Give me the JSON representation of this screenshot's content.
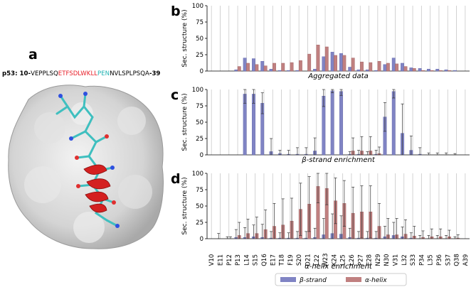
{
  "left": {
    "label": "a",
    "sequence": [
      {
        "text": "p53: 10-",
        "color": "#000000",
        "bold": true
      },
      {
        "text": "VEPPLSQ",
        "color": "#000000"
      },
      {
        "text": "ETFSDLWKLL",
        "color": "#e8202a"
      },
      {
        "text": "PEN",
        "color": "#21b3b3"
      },
      {
        "text": "NVLSPLPSQA",
        "color": "#000000"
      },
      {
        "text": "-39",
        "color": "#000000",
        "bold": true
      }
    ]
  },
  "colors": {
    "strand": "#8084c4",
    "helix": "#c08080",
    "strand_edge": "#5d62a8",
    "helix_edge": "#9b5c5c",
    "grid": "#c8c8c8"
  },
  "legend": {
    "strand": "β-strand",
    "helix": "α-helix"
  },
  "chart_data": [
    {
      "panel": "b",
      "type": "bar",
      "subtitle": "Aggregated data",
      "ylabel": "Sec. structure (%)",
      "ylim": [
        0,
        100
      ],
      "yticks": [
        0,
        25,
        50,
        75,
        100
      ],
      "categories": [
        "V10",
        "E11",
        "P12",
        "P13",
        "L14",
        "S15",
        "Q16",
        "E17",
        "T18",
        "F19",
        "S20",
        "D21",
        "L22",
        "W23",
        "K24",
        "L25",
        "L26",
        "P27",
        "E28",
        "N29",
        "N30",
        "V31",
        "L32",
        "S33",
        "P34",
        "L35",
        "P36",
        "S37",
        "Q38",
        "A39"
      ],
      "series": [
        {
          "name": "β-strand",
          "values": [
            0,
            0,
            0,
            2,
            20,
            19,
            15,
            3,
            1,
            1,
            1,
            0,
            3,
            22,
            29,
            27,
            6,
            2,
            2,
            1,
            10,
            20,
            12,
            5,
            4,
            3,
            3,
            2,
            1,
            0
          ]
        },
        {
          "name": "α-helix",
          "values": [
            0,
            0,
            0,
            7,
            12,
            10,
            8,
            12,
            12,
            13,
            16,
            26,
            40,
            37,
            24,
            24,
            20,
            14,
            13,
            15,
            12,
            11,
            7,
            4,
            1,
            1,
            1,
            1,
            0,
            0
          ]
        }
      ]
    },
    {
      "panel": "c",
      "type": "bar",
      "subtitle": "β-strand enrichment",
      "ylabel": "Sec. structure (%)",
      "ylim": [
        0,
        100
      ],
      "yticks": [
        0,
        25,
        50,
        75,
        100
      ],
      "categories": [
        "V10",
        "E11",
        "P12",
        "P13",
        "L14",
        "S15",
        "Q16",
        "E17",
        "T18",
        "F19",
        "S20",
        "D21",
        "L22",
        "W23",
        "K24",
        "L25",
        "L26",
        "P27",
        "E28",
        "N29",
        "N30",
        "V31",
        "L32",
        "S33",
        "P34",
        "L35",
        "P36",
        "S37",
        "Q38",
        "A39"
      ],
      "series": [
        {
          "name": "β-strand",
          "values": [
            0,
            0,
            0,
            0,
            93,
            93,
            79,
            5,
            2,
            1,
            1,
            1,
            6,
            90,
            98,
            97,
            1,
            1,
            0,
            1,
            58,
            97,
            33,
            7,
            1,
            0,
            0,
            0,
            0,
            0
          ],
          "errors": [
            0,
            0,
            0,
            0,
            14,
            14,
            16,
            20,
            5,
            6,
            10,
            10,
            20,
            16,
            3,
            6,
            4,
            6,
            5,
            6,
            22,
            10,
            45,
            22,
            10,
            3,
            3,
            3,
            2,
            0
          ]
        },
        {
          "name": "α-helix",
          "values": [
            0,
            0,
            0,
            0,
            0,
            0,
            0,
            0,
            0,
            0,
            0,
            0,
            0,
            0,
            0,
            0,
            6,
            6,
            6,
            2,
            0,
            0,
            0,
            0,
            0,
            0,
            0,
            0,
            0,
            0
          ],
          "errors": [
            0,
            0,
            0,
            0,
            0,
            0,
            0,
            0,
            0,
            0,
            0,
            0,
            0,
            0,
            0,
            0,
            20,
            22,
            22,
            10,
            0,
            0,
            0,
            0,
            0,
            0,
            0,
            0,
            0,
            0
          ]
        }
      ]
    },
    {
      "panel": "d",
      "type": "bar",
      "subtitle": "α-helix enrichment",
      "ylabel": "Sec. structure (%)",
      "ylim": [
        0,
        100
      ],
      "yticks": [
        0,
        25,
        50,
        75,
        100
      ],
      "xlabel": "",
      "categories": [
        "V10",
        "E11",
        "P12",
        "P13",
        "L14",
        "S15",
        "Q16",
        "E17",
        "T18",
        "F19",
        "S20",
        "D21",
        "L22",
        "W23",
        "K24",
        "L25",
        "L26",
        "P27",
        "E28",
        "N29",
        "N30",
        "V31",
        "L32",
        "S33",
        "P34",
        "L35",
        "P36",
        "S37",
        "Q38",
        "A39"
      ],
      "series": [
        {
          "name": "β-strand",
          "values": [
            0,
            0,
            0,
            2,
            2,
            3,
            2,
            1,
            1,
            1,
            1,
            1,
            2,
            6,
            8,
            7,
            2,
            1,
            1,
            1,
            3,
            5,
            3,
            1,
            0,
            0,
            0,
            0,
            0,
            0
          ],
          "errors": [
            0,
            8,
            3,
            12,
            15,
            18,
            20,
            10,
            8,
            8,
            10,
            10,
            14,
            25,
            30,
            28,
            14,
            10,
            10,
            10,
            16,
            20,
            15,
            8,
            5,
            5,
            5,
            5,
            3,
            0
          ]
        },
        {
          "name": "α-helix",
          "values": [
            0,
            0,
            0,
            5,
            8,
            8,
            14,
            19,
            21,
            27,
            45,
            53,
            80,
            77,
            58,
            54,
            39,
            41,
            41,
            19,
            6,
            6,
            7,
            4,
            2,
            3,
            3,
            3,
            1,
            0
          ],
          "errors": [
            0,
            0,
            3,
            20,
            22,
            25,
            30,
            35,
            40,
            35,
            40,
            42,
            25,
            25,
            35,
            35,
            40,
            40,
            40,
            35,
            25,
            25,
            22,
            15,
            10,
            12,
            12,
            10,
            5,
            0
          ]
        }
      ]
    }
  ]
}
